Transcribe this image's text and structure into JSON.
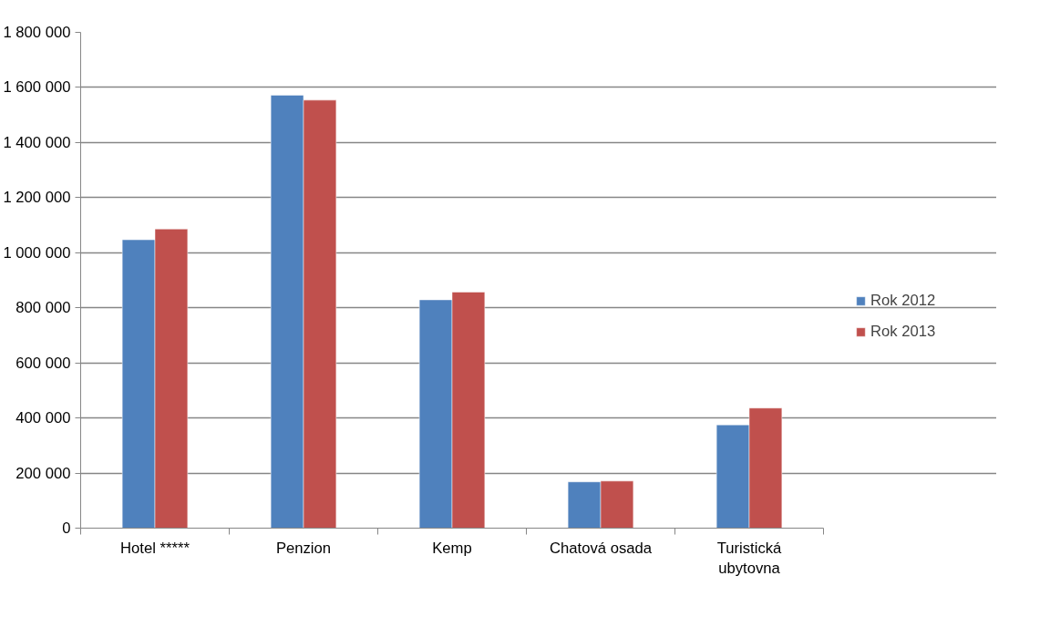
{
  "chart_data": {
    "type": "bar",
    "categories": [
      "Hotel *****",
      "Penzion",
      "Kemp",
      "Chatová osada",
      "Turistická ubytovna"
    ],
    "series": [
      {
        "name": "Rok 2012",
        "color": "#4f81bd",
        "values": [
          1047000,
          1572000,
          829000,
          168000,
          375000
        ]
      },
      {
        "name": "Rok 2013",
        "color": "#c0504d",
        "values": [
          1086000,
          1554000,
          857000,
          171000,
          436000
        ]
      }
    ],
    "ylim": [
      0,
      1800000
    ],
    "yticks": [
      0,
      {
        "value": 200000,
        "label": "200 000"
      },
      {
        "value": 400000,
        "label": "400 000"
      },
      {
        "value": 600000,
        "label": "600 000"
      },
      {
        "value": 800000,
        "label": "800 000"
      },
      {
        "value": 1000000,
        "label": "1 000 000"
      },
      {
        "value": 1200000,
        "label": "1 200 000"
      },
      {
        "value": 1400000,
        "label": "1 400 000"
      },
      {
        "value": 1600000,
        "label": "1 600 000"
      },
      {
        "value": 1800000,
        "label": "1 800 000"
      }
    ],
    "grid": "y",
    "legend": "right"
  }
}
